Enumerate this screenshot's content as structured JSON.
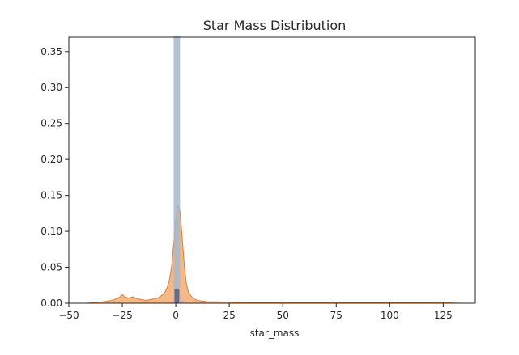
{
  "chart_data": {
    "type": "histogram",
    "title": "Star Mass Distribution",
    "xlabel": "star_mass",
    "ylabel": "",
    "xlim": [
      -50,
      140
    ],
    "ylim": [
      0,
      0.37
    ],
    "xticks": [
      -50,
      -25,
      0,
      25,
      50,
      75,
      100,
      125
    ],
    "xtick_labels": [
      "−50",
      "−25",
      "0",
      "25",
      "50",
      "75",
      "100",
      "125"
    ],
    "yticks": [
      0.0,
      0.05,
      0.1,
      0.15,
      0.2,
      0.25,
      0.3,
      0.35
    ],
    "ytick_labels": [
      "0.00",
      "0.05",
      "0.10",
      "0.15",
      "0.20",
      "0.25",
      "0.30",
      "0.35"
    ],
    "grid": false,
    "legend": "none",
    "colors": {
      "histogram": "#a6b9cc",
      "density": "#f0a160",
      "density_edge": "#e07b2d",
      "dark": "#555577"
    },
    "histogram": {
      "bins": [
        {
          "x0": -1.0,
          "x1": 2.0,
          "value": 0.372
        },
        {
          "x0": 2.0,
          "x1": 4.0,
          "value": 0.003
        }
      ]
    },
    "density": {
      "x": [
        -42,
        -38,
        -34,
        -30,
        -28,
        -26,
        -25,
        -24,
        -22,
        -21,
        -20,
        -18,
        -16,
        -14,
        -12,
        -10,
        -8,
        -6,
        -5,
        -4,
        -3,
        -2,
        -1,
        0,
        1,
        2,
        3,
        4,
        5,
        6,
        8,
        10,
        15,
        20,
        30,
        40,
        60,
        80,
        100,
        120,
        135
      ],
      "y": [
        0.0,
        0.001,
        0.002,
        0.004,
        0.006,
        0.009,
        0.012,
        0.009,
        0.007,
        0.008,
        0.009,
        0.006,
        0.005,
        0.004,
        0.005,
        0.006,
        0.008,
        0.012,
        0.016,
        0.022,
        0.032,
        0.05,
        0.082,
        0.118,
        0.136,
        0.128,
        0.09,
        0.052,
        0.026,
        0.014,
        0.007,
        0.004,
        0.002,
        0.002,
        0.001,
        0.001,
        0.001,
        0.001,
        0.001,
        0.001,
        0.0
      ]
    },
    "dark_spike": {
      "x0": -0.6,
      "x1": 1.6,
      "value": 0.02
    }
  }
}
